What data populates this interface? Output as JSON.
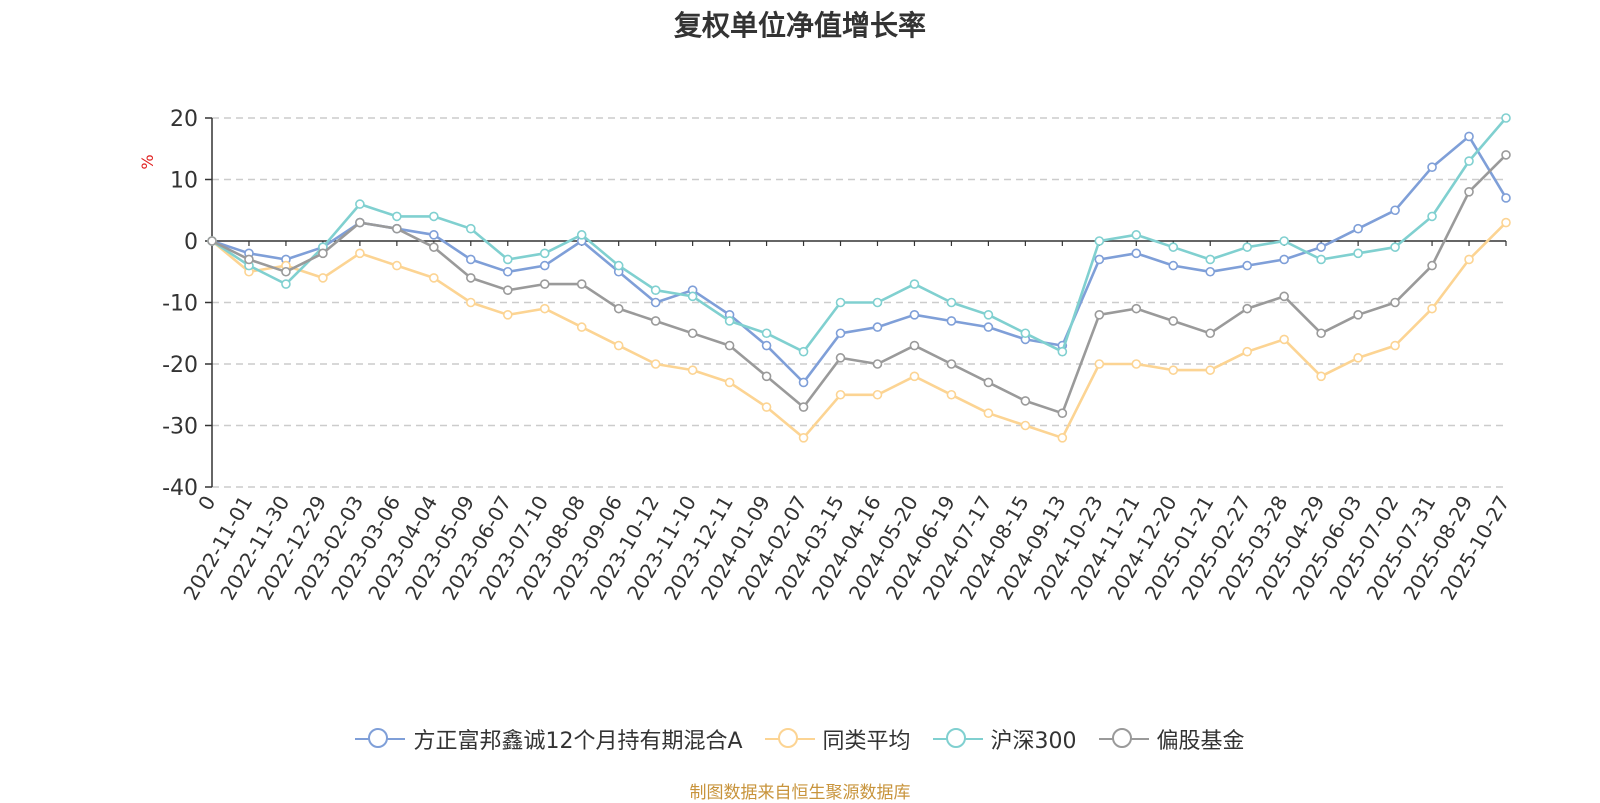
{
  "chart_data": {
    "type": "line",
    "title": "复权单位净值增长率",
    "ylabel": "%",
    "ylim": [
      -40,
      20
    ],
    "yticks": [
      -40,
      -30,
      -20,
      -10,
      0,
      10,
      20
    ],
    "x_tick_labels": [
      "0",
      "2022-11-01",
      "2022-11-30",
      "2022-12-29",
      "2023-02-03",
      "2023-03-06",
      "2023-04-04",
      "2023-05-09",
      "2023-06-07",
      "2023-07-10",
      "2023-08-08",
      "2023-09-06",
      "2023-10-12",
      "2023-11-10",
      "2023-12-11",
      "2024-01-09",
      "2024-02-07",
      "2024-03-15",
      "2024-04-16",
      "2024-05-20",
      "2024-06-19",
      "2024-07-17",
      "2024-08-15",
      "2024-09-13",
      "2024-10-23",
      "2024-11-21",
      "2024-12-20",
      "2025-01-21",
      "2025-02-27",
      "2025-03-28",
      "2025-04-29",
      "2025-06-03",
      "2025-07-02",
      "2025-07-31",
      "2025-08-29",
      "2025-10-27"
    ],
    "grid": true,
    "legend_position": "bottom",
    "series": [
      {
        "name": "方正富邦鑫诚12个月持有期混合A",
        "color": "#7f9fd8",
        "values": [
          0,
          -2,
          -3,
          -1,
          3,
          2,
          1,
          -3,
          -5,
          -4,
          0,
          -5,
          -10,
          -8,
          -12,
          -17,
          -23,
          -15,
          -14,
          -12,
          -13,
          -14,
          -16,
          -17,
          -3,
          -2,
          -4,
          -5,
          -4,
          -3,
          -1,
          2,
          5,
          12,
          17,
          7
        ]
      },
      {
        "name": "同类平均",
        "color": "#fcd493",
        "values": [
          0,
          -5,
          -4,
          -6,
          -2,
          -4,
          -6,
          -10,
          -12,
          -11,
          -14,
          -17,
          -20,
          -21,
          -23,
          -27,
          -32,
          -25,
          -25,
          -22,
          -25,
          -28,
          -30,
          -32,
          -20,
          -20,
          -21,
          -21,
          -18,
          -16,
          -22,
          -19,
          -17,
          -11,
          -3,
          3
        ]
      },
      {
        "name": "沪深300",
        "color": "#80d0d0",
        "values": [
          0,
          -4,
          -7,
          -1,
          6,
          4,
          4,
          2,
          -3,
          -2,
          1,
          -4,
          -8,
          -9,
          -13,
          -15,
          -18,
          -10,
          -10,
          -7,
          -10,
          -12,
          -15,
          -18,
          0,
          1,
          -1,
          -3,
          -1,
          0,
          -3,
          -2,
          -1,
          4,
          13,
          20
        ]
      },
      {
        "name": "偏股基金",
        "color": "#9a9a9a",
        "values": [
          0,
          -3,
          -5,
          -2,
          3,
          2,
          -1,
          -6,
          -8,
          -7,
          -7,
          -11,
          -13,
          -15,
          -17,
          -22,
          -27,
          -19,
          -20,
          -17,
          -20,
          -23,
          -26,
          -28,
          -12,
          -11,
          -13,
          -15,
          -11,
          -9,
          -15,
          -12,
          -10,
          -4,
          8,
          14
        ]
      }
    ]
  },
  "legend": {
    "items": [
      {
        "label": "方正富邦鑫诚12个月持有期混合A",
        "color": "#7f9fd8"
      },
      {
        "label": "同类平均",
        "color": "#fcd493"
      },
      {
        "label": "沪深300",
        "color": "#80d0d0"
      },
      {
        "label": "偏股基金",
        "color": "#9a9a9a"
      }
    ]
  },
  "source": "制图数据来自恒生聚源数据库"
}
